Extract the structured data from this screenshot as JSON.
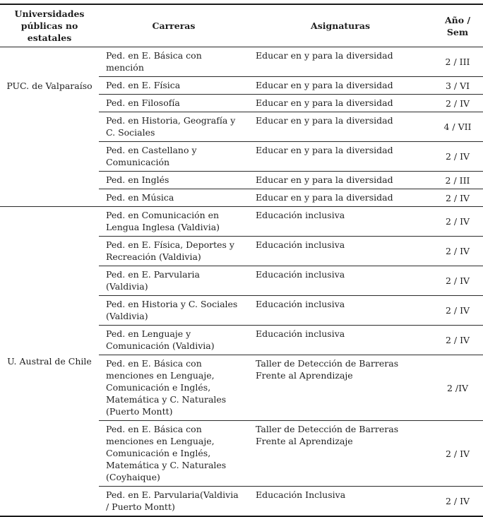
{
  "colors": {
    "text": "#1f1f1f",
    "rules": "#2b2b2b",
    "background": "#ffffff"
  },
  "table": {
    "columns": {
      "universities": "Universidades\npúblicas no estatales",
      "carreras": "Carreras",
      "asignaturas": "Asignaturas",
      "ano_sem": "Año / Sem"
    },
    "groups": [
      {
        "university": "PUC. de Valparaíso",
        "rows": [
          {
            "carrera": "Ped. en E. Básica con mención",
            "asignatura": "Educar en y para la diversidad",
            "ano": "2 / III"
          },
          {
            "carrera": "Ped. en E. Física",
            "asignatura": "Educar en y para la diversidad",
            "ano": "3 / VI"
          },
          {
            "carrera": "Ped. en Filosofía",
            "asignatura": "Educar en y para la diversidad",
            "ano": "2 / IV"
          },
          {
            "carrera": "Ped. en Historia, Geografía y C. Sociales",
            "asignatura": "Educar en y para la diversidad",
            "ano": "4 / VII"
          },
          {
            "carrera": "Ped. en Castellano y Comunicación",
            "asignatura": "Educar en y para la diversidad",
            "ano": "2 / IV"
          },
          {
            "carrera": "Ped. en Inglés",
            "asignatura": "Educar en y para la diversidad",
            "ano": "2 / III"
          },
          {
            "carrera": "Ped. en Música",
            "asignatura": "Educar en y para la diversidad",
            "ano": "2 / IV"
          }
        ]
      },
      {
        "university": "U. Austral de Chile",
        "rows": [
          {
            "carrera": "Ped. en Comunicación en Lengua Inglesa (Valdivia)",
            "asignatura": "Educación inclusiva",
            "ano": "2 / IV"
          },
          {
            "carrera": "Ped. en E. Física, Deportes y Recreación (Valdivia)",
            "asignatura": "Educación inclusiva",
            "ano": "2 / IV"
          },
          {
            "carrera": "Ped. en E. Parvularia (Valdivia)",
            "asignatura": "Educación inclusiva",
            "ano": "2 / IV"
          },
          {
            "carrera": "Ped. en Historia y C. Sociales (Valdivia)",
            "asignatura": "Educación inclusiva",
            "ano": "2 / IV"
          },
          {
            "carrera": "Ped. en Lenguaje y Comunicación (Valdivia)",
            "asignatura": "Educación inclusiva",
            "ano": "2 / IV"
          },
          {
            "carrera": "Ped. en E. Básica con menciones en Lenguaje, Comunicación e Inglés, Matemática y C. Naturales (Puerto Montt)",
            "asignatura": "Taller de Detección de Barreras Frente al Aprendizaje",
            "ano": "2 /IV"
          },
          {
            "carrera": "Ped. en E. Básica con menciones en Lenguaje, Comunicación e Inglés, Matemática y C. Naturales (Coyhaique)",
            "asignatura": "Taller de Detección de Barreras Frente al Aprendizaje",
            "ano": "2 / IV"
          },
          {
            "carrera": "Ped. en E. Parvularia(Valdivia / Puerto Montt)",
            "asignatura": "Educación Inclusiva",
            "ano": "2 / IV"
          }
        ]
      }
    ]
  }
}
